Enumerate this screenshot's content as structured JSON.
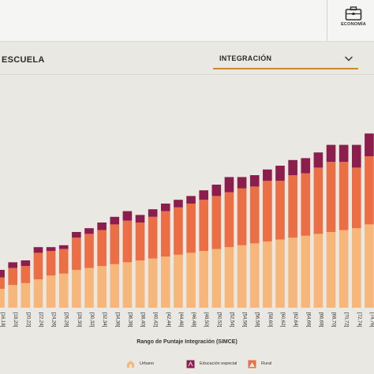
{
  "header": {
    "tab_label": "ECONOMÍA",
    "tab_icon": "briefcase-icon"
  },
  "section": {
    "title": "ESCUELA"
  },
  "selector": {
    "value": "INTEGRACIÓN",
    "icon": "chevron-down-icon"
  },
  "colors": {
    "urbano": "#f7b77a",
    "rural": "#eb6e45",
    "especial": "#8b1e4c",
    "accent": "#c98a2e"
  },
  "chart_data": {
    "type": "bar",
    "stacked": true,
    "xlabel": "Rango de Puntaje Integración (SIMCE)",
    "ylabel": "",
    "categories": [
      "[16,18[",
      "[18,20[",
      "[20,22[",
      "[22,24[",
      "[24,26[",
      "[26,28[",
      "[28,30[",
      "[30,32[",
      "[32,34[",
      "[34,36[",
      "[36,38[",
      "[38,40[",
      "[40,42[",
      "[42,44[",
      "[44,46[",
      "[46,48[",
      "[48,50[",
      "[50,52[",
      "[52,54[",
      "[54,56[",
      "[56,58[",
      "[58,60[",
      "[60,62[",
      "[62,64[",
      "[64,66[",
      "[66,68[",
      "[68,70[",
      "[70,72[",
      "[72,74[",
      "[74,76["
    ],
    "category_labels_visible": [
      "[16,18[",
      "[18,20[",
      "[20,22[",
      "[22,24[",
      "[24,26[",
      "[26,28[",
      "[28,30[",
      "[30,32[",
      "[32,34[",
      "[34,36[",
      "[36,38[",
      "[38,40[",
      "[40,42[",
      "[42,44[",
      "[44,46[",
      "[46,48[",
      "[48,50[",
      "[50,52[",
      "[52,54[",
      "[54,56[",
      "[56,58[",
      "[58,60[",
      "[60,62[",
      "[62,64[",
      "[64,66[",
      "[66,68[",
      "[68,70[",
      "[70,72[",
      "[72,74[",
      "[74,76["
    ],
    "series": [
      {
        "name": "Urbano",
        "values": [
          10,
          12,
          13,
          15,
          17,
          18,
          20,
          21,
          22,
          23,
          24,
          25,
          26,
          27,
          28,
          29,
          30,
          31,
          32,
          33,
          34,
          35,
          36,
          37,
          38,
          39,
          40,
          41,
          42,
          44
        ]
      },
      {
        "name": "Rural",
        "values": [
          6,
          9,
          9,
          14,
          13,
          13,
          17,
          18,
          19,
          21,
          22,
          20,
          22,
          24,
          25,
          26,
          27,
          28,
          29,
          30,
          30,
          32,
          31,
          33,
          33,
          35,
          37,
          36,
          32,
          36
        ]
      },
      {
        "name": "Educación especial",
        "values": [
          4,
          3,
          3,
          3,
          2,
          2,
          3,
          3,
          4,
          4,
          5,
          4,
          4,
          4,
          4,
          4,
          5,
          6,
          8,
          6,
          6,
          6,
          8,
          8,
          8,
          8,
          9,
          9,
          12,
          12
        ]
      }
    ],
    "ylim": [
      0,
      100
    ],
    "grid": false,
    "legend_position": "bottom"
  }
}
